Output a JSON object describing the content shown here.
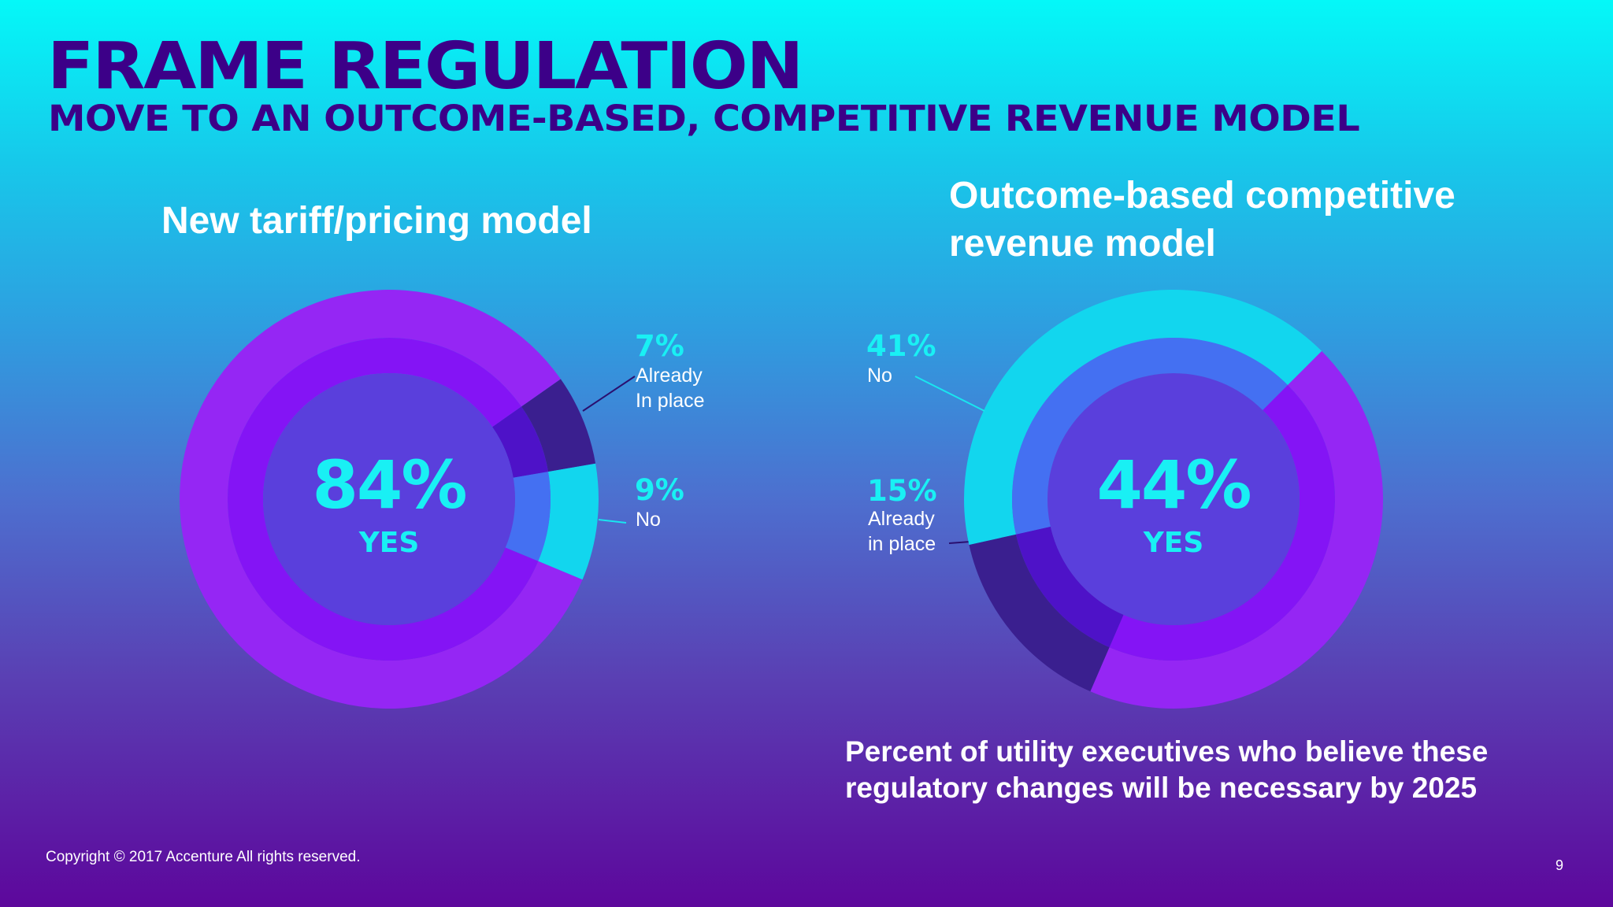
{
  "header": {
    "title": "FRAME REGULATION",
    "subtitle": "MOVE TO AN OUTCOME-BASED, COMPETITIVE REVENUE MODEL"
  },
  "chart_data": [
    {
      "type": "pie",
      "title": "New tariff/pricing model",
      "center_value": "84%",
      "center_label": "YES",
      "segments": [
        {
          "name": "Already In place",
          "value": 7,
          "label_pct": "7%",
          "label_text": "Already\nIn place",
          "color": "#3a1f8f"
        },
        {
          "name": "No",
          "value": 9,
          "label_pct": "9%",
          "label_text": "No",
          "color": "#12d6ee"
        },
        {
          "name": "Yes",
          "value": 84,
          "label_pct": "84%",
          "label_text": "YES",
          "color": "#9526f4"
        }
      ]
    },
    {
      "type": "pie",
      "title": "Outcome-based competitive revenue model",
      "center_value": "44%",
      "center_label": "YES",
      "segments": [
        {
          "name": "Yes",
          "value": 44,
          "label_pct": "44%",
          "label_text": "YES",
          "color": "#9526f4"
        },
        {
          "name": "Already in place",
          "value": 15,
          "label_pct": "15%",
          "label_text": "Already\nin place",
          "color": "#3a1f8f"
        },
        {
          "name": "No",
          "value": 41,
          "label_pct": "41%",
          "label_text": "No",
          "color": "#12d6ee"
        }
      ]
    }
  ],
  "caption": "Percent of utility executives who believe these regulatory changes will be necessary by 2025",
  "footer": {
    "copyright": "Copyright © 2017 Accenture  All rights reserved.",
    "page_number": "9"
  }
}
